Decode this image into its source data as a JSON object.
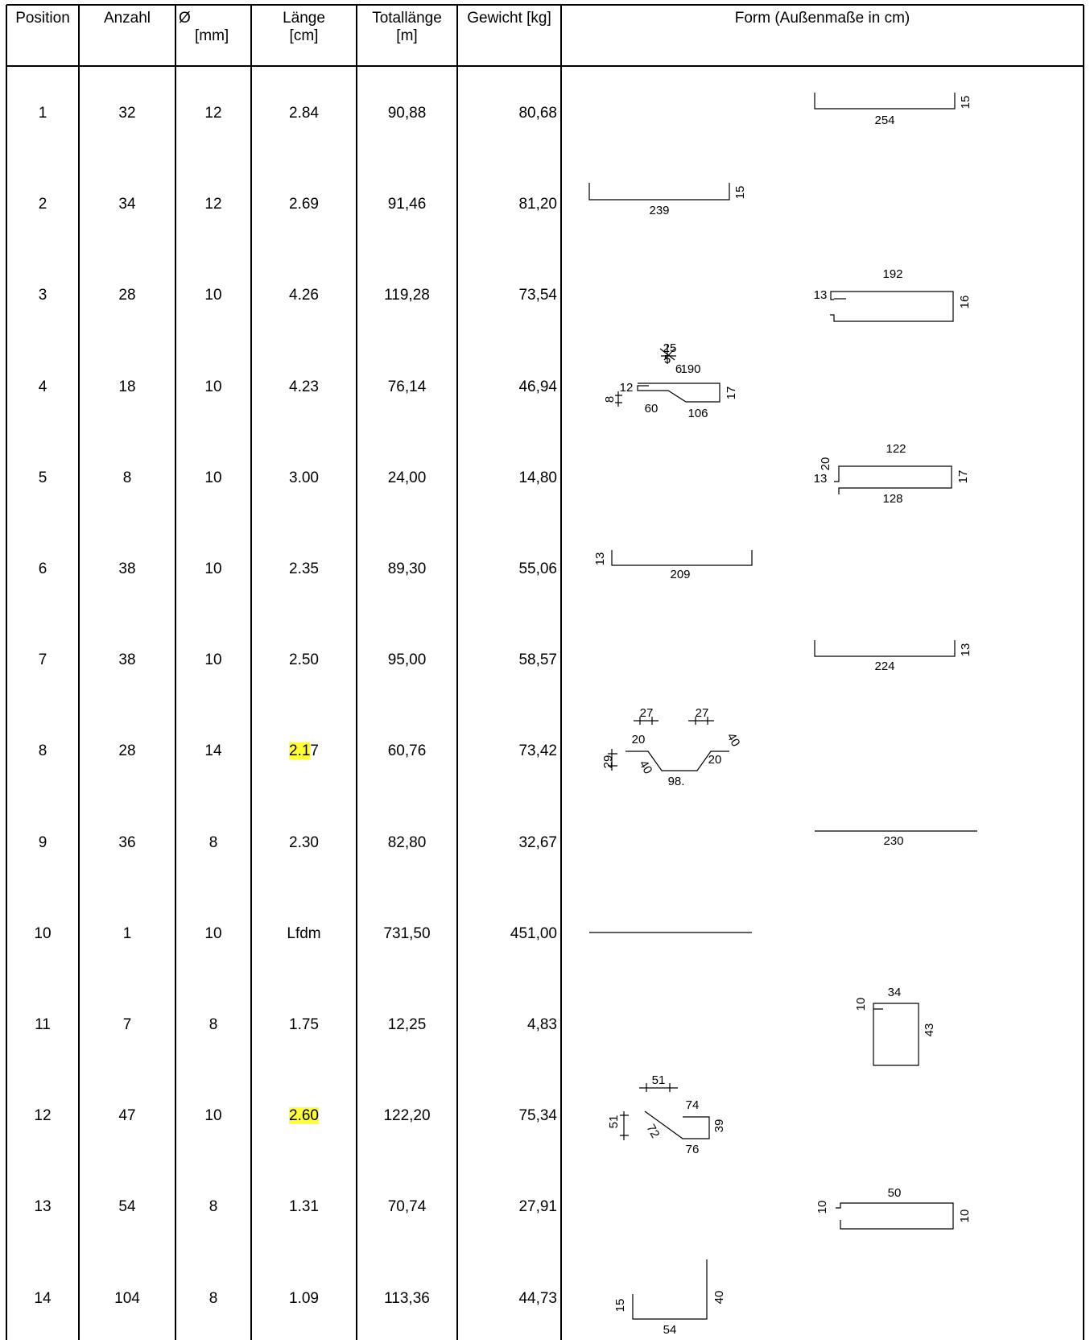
{
  "headers": {
    "position": "Position",
    "anzahl": "Anzahl",
    "dia_line1": "Ø",
    "dia_line2": "[mm]",
    "laenge_line1": "Länge",
    "laenge_line2": "[cm]",
    "total_line1": "Totallänge",
    "total_line2": "[m]",
    "gewicht": "Gewicht [kg]",
    "form": "Form (Außenmaße in cm)"
  },
  "rows": [
    {
      "position": "1",
      "anzahl": "32",
      "dia": "12",
      "laenge": "2.84",
      "total": "90,88",
      "gewicht": "80,68"
    },
    {
      "position": "2",
      "anzahl": "34",
      "dia": "12",
      "laenge": "2.69",
      "total": "91,46",
      "gewicht": "81,20"
    },
    {
      "position": "3",
      "anzahl": "28",
      "dia": "10",
      "laenge": "4.26",
      "total": "119,28",
      "gewicht": "73,54"
    },
    {
      "position": "4",
      "anzahl": "18",
      "dia": "10",
      "laenge": "4.23",
      "total": "76,14",
      "gewicht": "46,94"
    },
    {
      "position": "5",
      "anzahl": "8",
      "dia": "10",
      "laenge": "3.00",
      "total": "24,00",
      "gewicht": "14,80"
    },
    {
      "position": "6",
      "anzahl": "38",
      "dia": "10",
      "laenge": "2.35",
      "total": "89,30",
      "gewicht": "55,06"
    },
    {
      "position": "7",
      "anzahl": "38",
      "dia": "10",
      "laenge": "2.50",
      "total": "95,00",
      "gewicht": "58,57"
    },
    {
      "position": "8",
      "anzahl": "28",
      "dia": "14",
      "laenge": "2.17",
      "laenge_hl": "2.1",
      "laenge_rest": "7",
      "total": "60,76",
      "gewicht": "73,42"
    },
    {
      "position": "9",
      "anzahl": "36",
      "dia": "8",
      "laenge": "2.30",
      "total": "82,80",
      "gewicht": "32,67"
    },
    {
      "position": "10",
      "anzahl": "1",
      "dia": "10",
      "laenge": "Lfdm",
      "total": "731,50",
      "gewicht": "451,00"
    },
    {
      "position": "11",
      "anzahl": "7",
      "dia": "8",
      "laenge": "1.75",
      "total": "12,25",
      "gewicht": "4,83"
    },
    {
      "position": "12",
      "anzahl": "47",
      "dia": "10",
      "laenge": "2.60",
      "laenge_hl": "2.60",
      "laenge_rest": "",
      "total": "122,20",
      "gewicht": "75,34"
    },
    {
      "position": "13",
      "anzahl": "54",
      "dia": "8",
      "laenge": "1.31",
      "total": "70,74",
      "gewicht": "27,91"
    },
    {
      "position": "14",
      "anzahl": "104",
      "dia": "8",
      "laenge": "1.09",
      "total": "113,36",
      "gewicht": "44,73"
    }
  ],
  "shape_labels": {
    "s1": [
      "254",
      "15"
    ],
    "s2": [
      "239",
      "15"
    ],
    "s3": [
      "192",
      "13",
      "16"
    ],
    "s4": [
      "25",
      "5",
      "6",
      "190",
      "12",
      "8",
      "60",
      "106",
      "17"
    ],
    "s5": [
      "122",
      "20",
      "13",
      "128",
      "17"
    ],
    "s6": [
      "13",
      "209"
    ],
    "s7": [
      "224",
      "13"
    ],
    "s8": [
      "27",
      "27",
      "20",
      "40",
      "29",
      "40",
      "98.",
      "20"
    ],
    "s9": [
      "230"
    ],
    "s11": [
      "34",
      "10",
      "43"
    ],
    "s12": [
      "51",
      "74",
      "51",
      "72",
      "39",
      "76"
    ],
    "s13": [
      "50",
      "10",
      "10"
    ],
    "s14": [
      "15",
      "40",
      "54"
    ]
  },
  "highlight_color": "#ffff33"
}
